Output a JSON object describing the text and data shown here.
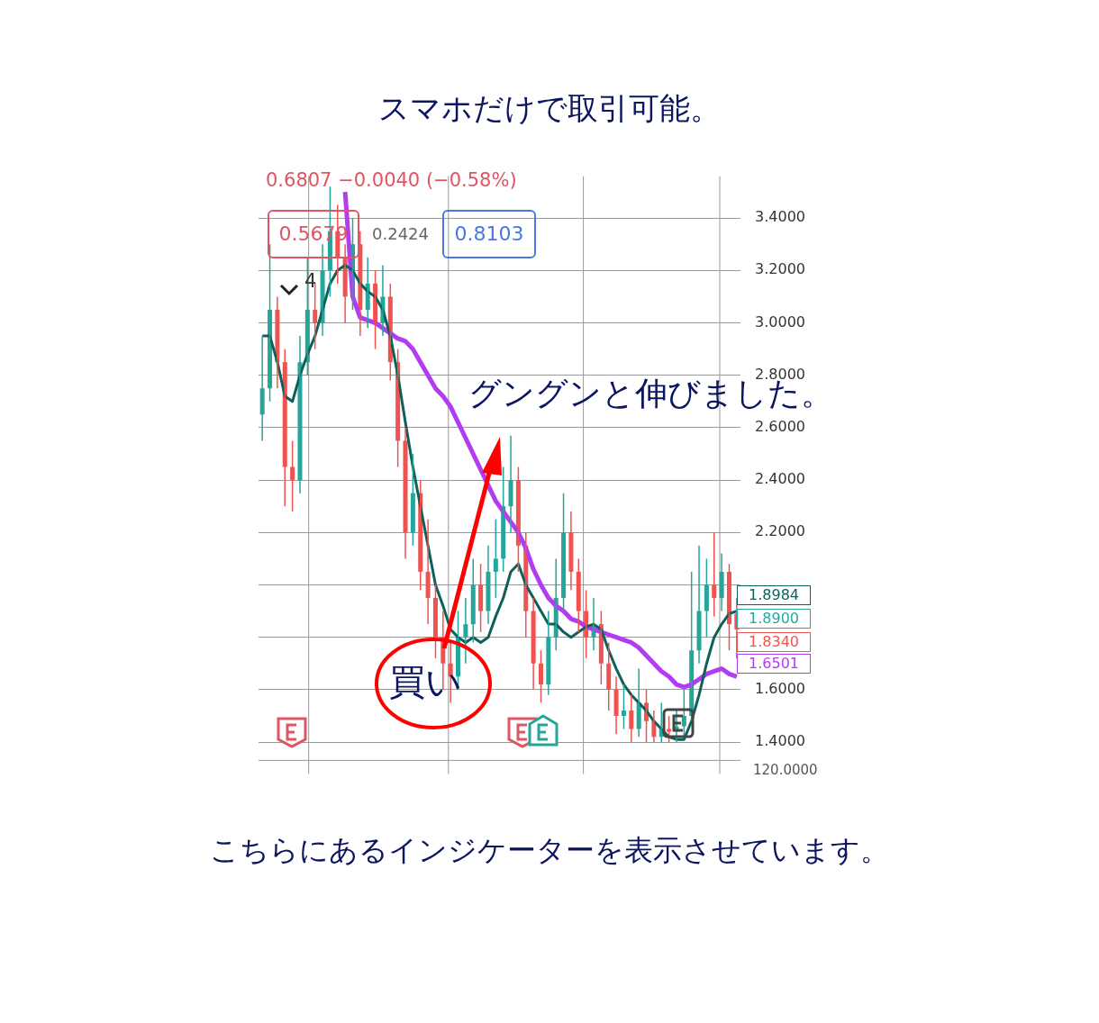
{
  "chart_data": {
    "type": "candlestick",
    "title": "スマホだけで取引可能。",
    "categories": [
      null,
      null,
      null,
      null,
      null,
      null,
      null,
      null,
      null,
      null,
      null,
      null,
      null,
      null,
      null,
      null,
      null,
      null,
      null,
      null,
      null,
      null,
      null,
      null,
      null,
      null,
      null,
      null,
      null,
      null,
      null,
      null,
      null,
      null,
      null,
      null,
      null,
      null,
      null,
      null,
      null,
      null,
      null,
      null,
      null,
      null,
      null,
      null,
      null,
      null,
      null,
      null,
      null,
      null,
      null,
      null,
      null,
      null,
      null,
      null,
      null,
      null,
      null,
      null
    ],
    "ohlc": [
      [
        2.65,
        2.95,
        2.55,
        2.75
      ],
      [
        2.75,
        3.3,
        2.7,
        3.05
      ],
      [
        3.05,
        3.1,
        2.75,
        2.85
      ],
      [
        2.85,
        2.9,
        2.3,
        2.45
      ],
      [
        2.45,
        2.55,
        2.28,
        2.4
      ],
      [
        2.4,
        2.95,
        2.35,
        2.85
      ],
      [
        2.85,
        3.25,
        2.8,
        3.05
      ],
      [
        3.05,
        3.15,
        2.9,
        3.0
      ],
      [
        3.0,
        3.3,
        2.95,
        3.2
      ],
      [
        3.2,
        3.52,
        3.1,
        3.35
      ],
      [
        3.35,
        3.45,
        3.15,
        3.25
      ],
      [
        3.25,
        3.3,
        3.0,
        3.1
      ],
      [
        3.1,
        3.4,
        3.05,
        3.3
      ],
      [
        3.3,
        3.35,
        2.95,
        3.05
      ],
      [
        3.05,
        3.25,
        2.98,
        3.15
      ],
      [
        3.15,
        3.2,
        2.9,
        3.0
      ],
      [
        3.0,
        3.22,
        2.95,
        3.1
      ],
      [
        3.1,
        3.15,
        2.78,
        2.85
      ],
      [
        2.85,
        2.9,
        2.45,
        2.55
      ],
      [
        2.55,
        2.6,
        2.1,
        2.2
      ],
      [
        2.2,
        2.5,
        2.15,
        2.35
      ],
      [
        2.35,
        2.4,
        1.98,
        2.05
      ],
      [
        2.05,
        2.25,
        1.85,
        1.95
      ],
      [
        1.95,
        2.0,
        1.72,
        1.8
      ],
      [
        1.8,
        1.9,
        1.6,
        1.7
      ],
      [
        1.7,
        1.78,
        1.55,
        1.65
      ],
      [
        1.65,
        1.9,
        1.6,
        1.8
      ],
      [
        1.8,
        1.95,
        1.7,
        1.85
      ],
      [
        1.85,
        2.1,
        1.78,
        2.0
      ],
      [
        2.0,
        2.08,
        1.82,
        1.9
      ],
      [
        1.9,
        2.15,
        1.85,
        2.05
      ],
      [
        2.05,
        2.25,
        1.95,
        2.1
      ],
      [
        2.1,
        2.45,
        2.05,
        2.3
      ],
      [
        2.3,
        2.57,
        2.2,
        2.4
      ],
      [
        2.4,
        2.45,
        2.05,
        2.15
      ],
      [
        2.15,
        2.2,
        1.8,
        1.9
      ],
      [
        1.9,
        1.95,
        1.6,
        1.7
      ],
      [
        1.7,
        1.75,
        1.55,
        1.62
      ],
      [
        1.62,
        1.9,
        1.58,
        1.8
      ],
      [
        1.8,
        2.1,
        1.75,
        1.95
      ],
      [
        1.95,
        2.35,
        1.9,
        2.2
      ],
      [
        2.2,
        2.28,
        1.98,
        2.05
      ],
      [
        2.05,
        2.1,
        1.82,
        1.9
      ],
      [
        1.9,
        1.98,
        1.72,
        1.8
      ],
      [
        1.8,
        1.95,
        1.75,
        1.85
      ],
      [
        1.85,
        1.9,
        1.62,
        1.7
      ],
      [
        1.7,
        1.78,
        1.52,
        1.6
      ],
      [
        1.6,
        1.65,
        1.43,
        1.5
      ],
      [
        1.5,
        1.62,
        1.45,
        1.52
      ],
      [
        1.52,
        1.58,
        1.4,
        1.45
      ],
      [
        1.45,
        1.68,
        1.42,
        1.55
      ],
      [
        1.55,
        1.6,
        1.4,
        1.48
      ],
      [
        1.48,
        1.52,
        1.4,
        1.42
      ],
      [
        1.42,
        1.55,
        1.4,
        1.45
      ],
      [
        1.45,
        1.5,
        1.4,
        1.44
      ],
      [
        1.44,
        1.52,
        1.4,
        1.46
      ],
      [
        1.46,
        1.6,
        1.42,
        1.5
      ],
      [
        1.5,
        2.05,
        1.48,
        1.75
      ],
      [
        1.75,
        2.15,
        1.7,
        1.9
      ],
      [
        1.9,
        2.1,
        1.8,
        2.0
      ],
      [
        2.0,
        2.2,
        1.88,
        1.95
      ],
      [
        1.95,
        2.12,
        1.9,
        2.05
      ],
      [
        2.05,
        2.08,
        1.75,
        1.85
      ],
      [
        1.89,
        1.95,
        1.72,
        1.83
      ]
    ],
    "colors": [
      "#26a69a",
      "#26a69a",
      "#ef5350",
      "#ef5350",
      "#ef5350",
      "#26a69a",
      "#26a69a",
      "#ef5350",
      "#26a69a",
      "#26a69a",
      "#ef5350",
      "#ef5350",
      "#26a69a",
      "#ef5350",
      "#26a69a",
      "#ef5350",
      "#26a69a",
      "#ef5350",
      "#ef5350",
      "#ef5350",
      "#26a69a",
      "#ef5350",
      "#ef5350",
      "#ef5350",
      "#ef5350",
      "#ef5350",
      "#26a69a",
      "#26a69a",
      "#26a69a",
      "#ef5350",
      "#26a69a",
      "#26a69a",
      "#26a69a",
      "#26a69a",
      "#ef5350",
      "#ef5350",
      "#ef5350",
      "#ef5350",
      "#26a69a",
      "#26a69a",
      "#26a69a",
      "#ef5350",
      "#ef5350",
      "#ef5350",
      "#26a69a",
      "#ef5350",
      "#ef5350",
      "#ef5350",
      "#26a69a",
      "#ef5350",
      "#26a69a",
      "#ef5350",
      "#ef5350",
      "#26a69a",
      "#ef5350",
      "#26a69a",
      "#26a69a",
      "#26a69a",
      "#26a69a",
      "#26a69a",
      "#ef5350",
      "#26a69a",
      "#ef5350",
      "#ef5350"
    ],
    "series": [
      {
        "type": "line",
        "color": "#0f5f5a",
        "values": [
          2.95,
          2.95,
          2.85,
          2.72,
          2.7,
          2.8,
          2.88,
          2.95,
          3.05,
          3.15,
          3.2,
          3.22,
          3.2,
          3.15,
          3.12,
          3.1,
          3.05,
          2.95,
          2.8,
          2.62,
          2.45,
          2.3,
          2.15,
          2.0,
          1.92,
          1.83,
          1.8,
          1.78,
          1.8,
          1.78,
          1.8,
          1.88,
          1.95,
          2.05,
          2.08,
          2.0,
          1.95,
          1.9,
          1.85,
          1.85,
          1.82,
          1.8,
          1.82,
          1.84,
          1.85,
          1.83,
          1.75,
          1.68,
          1.62,
          1.58,
          1.55,
          1.52,
          1.48,
          1.45,
          1.42,
          1.41,
          1.41,
          1.48,
          1.58,
          1.7,
          1.8,
          1.85,
          1.89,
          1.9
        ]
      },
      {
        "type": "line",
        "color": "#b23cf0",
        "values": [
          null,
          null,
          null,
          null,
          null,
          null,
          null,
          null,
          null,
          null,
          null,
          3.5,
          3.1,
          3.02,
          3.01,
          3.0,
          2.98,
          2.96,
          2.94,
          2.93,
          2.9,
          2.85,
          2.8,
          2.75,
          2.72,
          2.68,
          2.62,
          2.56,
          2.5,
          2.44,
          2.38,
          2.32,
          2.28,
          2.24,
          2.2,
          2.14,
          2.06,
          2.0,
          1.95,
          1.92,
          1.9,
          1.87,
          1.86,
          1.84,
          1.83,
          1.82,
          1.81,
          1.8,
          1.79,
          1.78,
          1.76,
          1.73,
          1.7,
          1.67,
          1.65,
          1.62,
          1.61,
          1.62,
          1.64,
          1.66,
          1.67,
          1.68,
          1.66,
          1.65
        ]
      }
    ],
    "ylim": [
      1.33,
      3.56
    ],
    "yticks": [
      {
        "value": 1.4,
        "label": "1.4000"
      },
      {
        "value": 1.6,
        "label": "1.6000"
      },
      {
        "value": 1.8,
        "label": null
      },
      {
        "value": 2.0,
        "label": null
      },
      {
        "value": 2.2,
        "label": "2.2000"
      },
      {
        "value": 2.4,
        "label": "2.4000"
      },
      {
        "value": 2.6,
        "label": "2.6000"
      },
      {
        "value": 2.8,
        "label": "2.8000"
      },
      {
        "value": 3.0,
        "label": "3.0000"
      },
      {
        "value": 3.2,
        "label": "3.2000"
      },
      {
        "value": 3.4,
        "label": "3.4000"
      }
    ],
    "grid": "y",
    "tick_labels": "y",
    "annotations": [
      "0.6807 −0.0040 (−0.58%)",
      "0.5679",
      "0.2424",
      "0.8103",
      "4",
      "1.8984",
      "1.8900",
      "1.8340",
      "1.6501",
      "120.0000",
      "グングンと伸びました。",
      "買い",
      "こちらにあるインジケーターを表示させています。"
    ]
  }
}
